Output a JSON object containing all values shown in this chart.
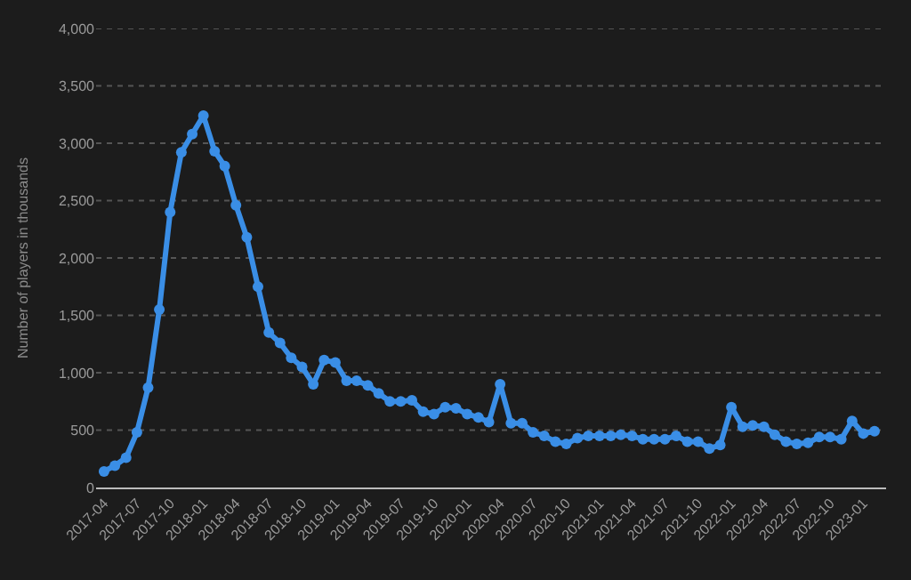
{
  "chart_data": {
    "type": "line",
    "ylabel": "Number of players in thousands",
    "x": [
      "2017-04",
      "2017-05",
      "2017-06",
      "2017-07",
      "2017-08",
      "2017-09",
      "2017-10",
      "2017-11",
      "2017-12",
      "2018-01",
      "2018-02",
      "2018-03",
      "2018-04",
      "2018-05",
      "2018-06",
      "2018-07",
      "2018-08",
      "2018-09",
      "2018-10",
      "2018-11",
      "2018-12",
      "2019-01",
      "2019-02",
      "2019-03",
      "2019-04",
      "2019-05",
      "2019-06",
      "2019-07",
      "2019-08",
      "2019-09",
      "2019-10",
      "2019-11",
      "2019-12",
      "2020-01",
      "2020-02",
      "2020-03",
      "2020-04",
      "2020-05",
      "2020-06",
      "2020-07",
      "2020-08",
      "2020-09",
      "2020-10",
      "2020-11",
      "2020-12",
      "2021-01",
      "2021-02",
      "2021-03",
      "2021-04",
      "2021-05",
      "2021-06",
      "2021-07",
      "2021-08",
      "2021-09",
      "2021-10",
      "2021-11",
      "2021-12",
      "2022-01",
      "2022-02",
      "2022-03",
      "2022-04",
      "2022-05",
      "2022-06",
      "2022-07",
      "2022-08",
      "2022-09",
      "2022-10",
      "2022-11",
      "2022-12",
      "2023-01",
      "2023-02"
    ],
    "series": [
      {
        "color": "#3a8ee6",
        "values": [
          140,
          190,
          260,
          480,
          870,
          1550,
          2400,
          2920,
          3080,
          3240,
          2930,
          2800,
          2460,
          2180,
          1750,
          1350,
          1260,
          1130,
          1050,
          900,
          1110,
          1090,
          930,
          930,
          890,
          820,
          750,
          750,
          760,
          660,
          640,
          700,
          690,
          640,
          610,
          570,
          900,
          560,
          560,
          480,
          450,
          400,
          380,
          430,
          450,
          450,
          450,
          460,
          450,
          420,
          420,
          420,
          450,
          400,
          400,
          340,
          370,
          700,
          530,
          540,
          530,
          460,
          400,
          380,
          390,
          440,
          440,
          420,
          580,
          470,
          490
        ]
      }
    ],
    "xlim": [
      "2017-03-10",
      "2023-03-05"
    ],
    "xticks": [
      "2017-04",
      "2017-07",
      "2017-10",
      "2018-01",
      "2018-04",
      "2018-07",
      "2018-10",
      "2019-01",
      "2019-04",
      "2019-07",
      "2019-10",
      "2020-01",
      "2020-04",
      "2020-07",
      "2020-10",
      "2021-01",
      "2021-04",
      "2021-07",
      "2021-10",
      "2022-01",
      "2022-04",
      "2022-07",
      "2022-10",
      "2023-01"
    ],
    "ylim": [
      0,
      4000
    ],
    "yticks": [
      0,
      500,
      {
        "value": 1000,
        "label": "1,000"
      },
      {
        "value": 1500,
        "label": "1,500"
      },
      {
        "value": 2000,
        "label": "2,000"
      },
      {
        "value": 2500,
        "label": "2,500"
      },
      {
        "value": 3000,
        "label": "3,000"
      },
      {
        "value": 3500,
        "label": "3,500"
      },
      {
        "value": 4000,
        "label": "4,000"
      }
    ],
    "grid": "y",
    "marker": "circle",
    "line_style": "solid"
  }
}
